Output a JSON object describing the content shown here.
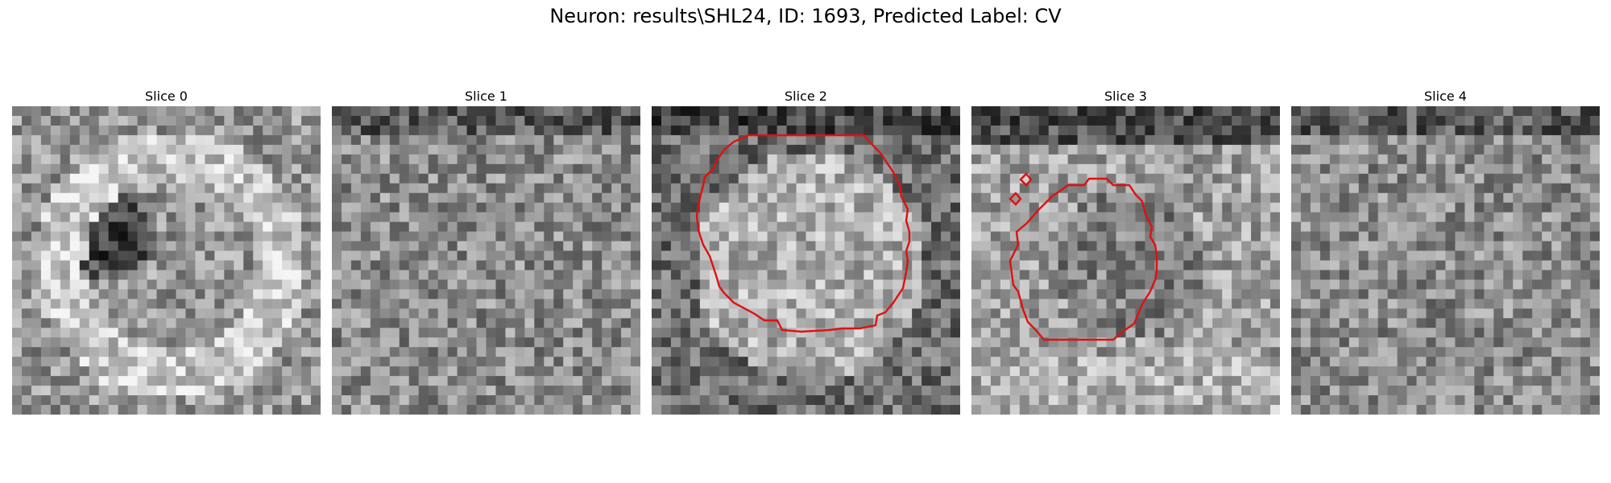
{
  "title": "Neuron: results\\SHL24, ID: 1693, Predicted Label: CV",
  "overlay_color": "#e01010",
  "grid_cells": 32,
  "panels": [
    {
      "label": "Slice 0",
      "has_contour": false,
      "seed": 11,
      "pattern": "ring"
    },
    {
      "label": "Slice 1",
      "has_contour": false,
      "seed": 23,
      "pattern": "noise"
    },
    {
      "label": "Slice 2",
      "has_contour": true,
      "seed": 37,
      "pattern": "disk"
    },
    {
      "label": "Slice 3",
      "has_contour": true,
      "seed": 53,
      "pattern": "dim"
    },
    {
      "label": "Slice 4",
      "has_contour": false,
      "seed": 71,
      "pattern": "noise"
    }
  ]
}
